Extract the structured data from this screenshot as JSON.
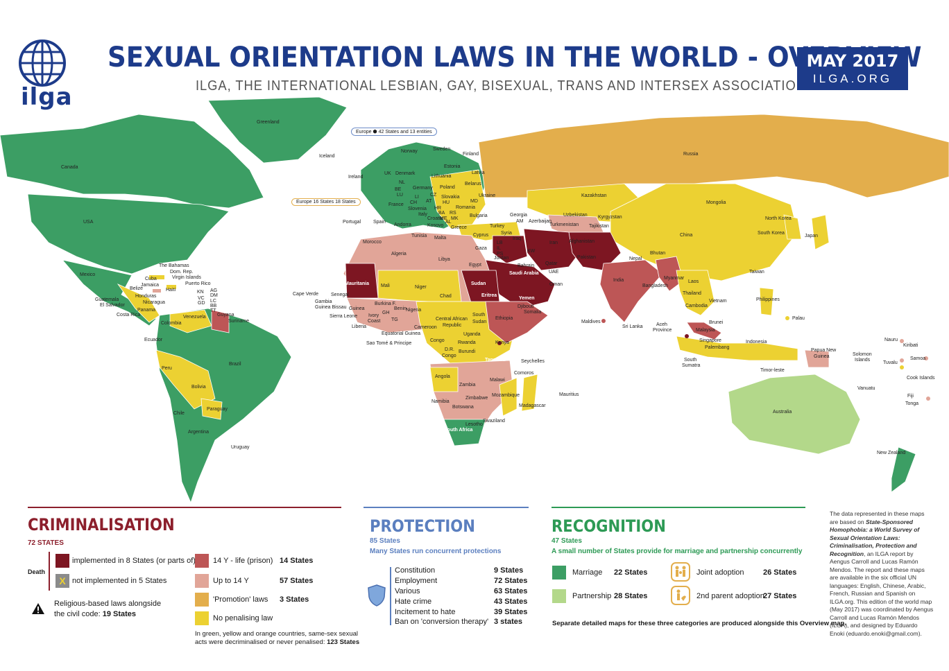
{
  "header": {
    "org_short": "ilga",
    "title": "SEXUAL ORIENTATION LAWS IN THE WORLD - OVERVIEW",
    "subtitle": "ILGA, THE INTERNATIONAL LESBIAN, GAY, BISEXUAL, TRANS AND INTERSEX ASSOCIATION",
    "date": "MAY 2017",
    "site": "ILGA.ORG"
  },
  "colors": {
    "marriage": "#3c9e64",
    "partnership": "#b3d88a",
    "death": "#7d1622",
    "death_not_implemented": "#8b8b8b",
    "prison_14y_life": "#bd5656",
    "up_to_14y": "#e1a598",
    "promotion": "#e3ae4c",
    "no_penalising": "#ecd132",
    "brand_blue": "#1d3b8a",
    "criminalisation_title": "#8c1f2c",
    "recognition_title": "#2d9a55"
  },
  "map_labels": {
    "europe_protection": "Europe",
    "europe_protection_count": "42 States and 13 entities",
    "europe_adoption": "Europe",
    "europe_adoption_joint": "16 States",
    "europe_adoption_second": "18 States",
    "greenland": "Greenland",
    "canada": "Canada",
    "usa": "USA",
    "mexico": "Mexico",
    "bahamas": "The Bahamas",
    "dom_rep": "Dom. Rep.",
    "virgin": "Virgin Islands",
    "cuba": "Cuba",
    "jamaica": "Jamaica",
    "haiti": "Haiti",
    "puerto_rico": "Puerto Rico",
    "belize": "Belize",
    "honduras": "Honduras",
    "guatemala": "Guatemala",
    "el_salvador": "El Salvador",
    "nicaragua": "Nicaragua",
    "panama": "Panama",
    "costa_rica": "Costa Rica",
    "kn": "KN",
    "ag": "AG",
    "lc": "LC",
    "vc": "VC",
    "bb": "BB",
    "gd": "GD",
    "tt": "TT",
    "dm": "DM",
    "venezuela": "Venezuela",
    "guyana": "Guyana",
    "suriname": "Suriname",
    "colombia": "Colombia",
    "ecuador": "Ecuador",
    "peru": "Peru",
    "brazil": "Brazil",
    "bolivia": "Bolivia",
    "chile": "Chile",
    "paraguay": "Paraguay",
    "argentina": "Argentina",
    "uruguay": "Uruguay",
    "iceland": "Iceland",
    "norway": "Norway",
    "sweden": "Sweden",
    "finland": "Finland",
    "estonia": "Estonia",
    "latvia": "Latvia",
    "lithuania": "Lithuania",
    "denmark": "Denmark",
    "uk": "UK",
    "ireland": "Ireland",
    "nl": "NL",
    "be": "BE",
    "lu": "LU",
    "germany": "Germany",
    "poland": "Poland",
    "belarus": "Belarus",
    "france": "France",
    "cz": "CZ",
    "slovakia": "Slovakia",
    "ukraine": "Ukraine",
    "li": "LI",
    "ch": "CH",
    "at": "AT",
    "hu": "HU",
    "md": "MD",
    "slovenia": "Slovenia",
    "hr": "HR",
    "romania": "Romania",
    "italy": "Italy",
    "ba": "BA",
    "rs": "RS",
    "me": "ME",
    "mk": "MK",
    "al": "AL",
    "bulgaria": "Bulgaria",
    "andorra": "Andorra",
    "kosovo": "Kosovo",
    "croatia": "Croatia",
    "greece": "Greece",
    "portugal": "Portugal",
    "spain": "Spain",
    "malta": "Malta",
    "cyprus": "Cyprus",
    "turkey": "Turkey",
    "georgia": "Georgia",
    "am": "AM",
    "azerbaijan": "Azerbaijan",
    "russia": "Russia",
    "kazakhstan": "Kazakhstan",
    "uzbekistan": "Uzbekistan",
    "turkmenistan": "Turkmenistan",
    "kyrgyzstan": "Kyrgyzstan",
    "tajikistan": "Tajikistan",
    "mongolia": "Mongolia",
    "china": "China",
    "north_korea": "North Korea",
    "south_korea": "South Korea",
    "japan": "Japan",
    "taiwan": "Taiwan",
    "philippines": "Philippines",
    "palau": "Palau",
    "afghanistan": "Afghanistan",
    "pakistan": "Pakistan",
    "iran": "Iran",
    "iraq": "Iraq",
    "syria": "Syria",
    "lebanon": "LB",
    "il": "IL",
    "ps": "PS",
    "jordan": "Jordan",
    "kw": "KW",
    "bahrain": "Bahrain",
    "qatar": "Qatar",
    "saudi": "Saudi Arabia",
    "uae": "UAE",
    "oman": "Oman",
    "yemen": "Yemen",
    "india": "India",
    "nepal": "Nepal",
    "bhutan": "Bhutan",
    "bangladesh": "Bangladesh",
    "myanmar": "Myanmar",
    "laos": "Laos",
    "thailand": "Thailand",
    "vietnam": "Vietnam",
    "cambodia": "Cambodia",
    "sri_lanka": "Sri Lanka",
    "maldives": "Maldives",
    "brunei": "Brunei",
    "malaysia": "Malaysia",
    "singapore": "Singapore",
    "palembang": "Palembang",
    "aceh": "Aceh",
    "aceh2": "Province",
    "indonesia": "Indonesia",
    "south_sumatra": "South",
    "south_sumatra2": "Sumatra",
    "timor": "Timor-leste",
    "png": "Papua New",
    "png2": "Guinea",
    "solomon": "Solomon",
    "solomon2": "Islands",
    "nauru": "Nauru",
    "kiribati": "Kiribati",
    "tuvalu": "Tuvalu",
    "samoa": "Samoa",
    "cook": "Cook Islands",
    "vanuatu": "Vanuatu",
    "fiji": "Fiji",
    "tonga": "Tonga",
    "australia": "Australia",
    "new_zealand": "New Zealand",
    "morocco": "Morocco",
    "tunisia": "Tunisia",
    "algeria": "Algeria",
    "libya": "Libya",
    "egypt": "Egypt",
    "gaza": "Gaza",
    "mauritania": "Mauritania",
    "mali": "Mali",
    "niger": "Niger",
    "chad": "Chad",
    "sudan": "Sudan",
    "eritrea": "Eritrea",
    "djibouti": "Djibouti",
    "somalia": "Somalia",
    "ethiopia": "Ethiopia",
    "cape_verde": "Cape Verde",
    "senegal": "Senegal",
    "gambia": "Gambia",
    "guinea_bissau": "Guinea Bissau",
    "guinea": "Guinea",
    "sierra_leone": "Sierra Leone",
    "liberia": "Liberia",
    "burkina": "Burkina F.",
    "gh": "GH",
    "tg": "TG",
    "benin": "Benin",
    "ivory": "Ivory",
    "ivory2": "Coast",
    "nigeria": "Nigeria",
    "cameroon": "Cameroon",
    "car": "Central African",
    "car2": "Republic",
    "south_sudan": "South",
    "south_sudan2": "Sudan",
    "eq_guinea": "Equatorial Guinea",
    "sao_tome": "Sao Tomé & Principe",
    "congo": "Congo",
    "drc": "D.R.",
    "drc2": "Congo",
    "uganda": "Uganda",
    "kenya": "Kenya",
    "rwanda": "Rwanda",
    "burundi": "Burundi",
    "tanzania": "Tanzania",
    "seychelles": "Seychelles",
    "comoros": "Comoros",
    "angola": "Angola",
    "zambia": "Zambia",
    "malawi": "Malawi",
    "mozambique": "Mozambique",
    "zimbabwe": "Zimbabwe",
    "namibia": "Namibia",
    "botswana": "Botswana",
    "madagascar": "Madagascar",
    "mauritius": "Mauritius",
    "south_africa": "South Africa",
    "lesotho": "Lesotho",
    "swaziland": "Swaziland"
  },
  "criminalisation": {
    "title": "CRIMINALISATION",
    "count": "72 STATES",
    "death_label": "Death",
    "death_implemented": "implemented in 8 States (or parts of)",
    "death_not_implemented": "not implemented in 5 States",
    "x_mark": "X",
    "religious_line1": "Religious-based laws alongside",
    "religious_line2": "the civil code: ",
    "religious_count": "19 States",
    "rows": [
      {
        "label": "14 Y - life (prison)",
        "count": "14 States"
      },
      {
        "label": "Up to 14 Y",
        "count": "57 States"
      },
      {
        "label": "'Promotion' laws",
        "count": "3 States"
      },
      {
        "label": "No penalising law",
        "count": ""
      }
    ],
    "footnote_line1": "In green, yellow and orange countries, same-sex sexual",
    "footnote_line2": "acts were decriminalised or never penalised: ",
    "footnote_count": "123 States"
  },
  "protection": {
    "title": "PROTECTION",
    "count": "85 States",
    "note": "Many States run concurrent protections",
    "items": [
      {
        "label": "Constitution",
        "count": "9 States"
      },
      {
        "label": "Employment",
        "count": "72 States"
      },
      {
        "label": "Various",
        "count": "63 States"
      },
      {
        "label": "Hate crime",
        "count": "43 States"
      },
      {
        "label": "Incitement to hate",
        "count": "39 States"
      },
      {
        "label": "Ban on 'conversion therapy'",
        "count": "3 states"
      }
    ]
  },
  "recognition": {
    "title": "RECOGNITION",
    "count": "47 States",
    "note": "A small number of States provide for marriage and partnership concurrently",
    "marriage": "Marriage",
    "marriage_count": "22 States",
    "partnership": "Partnership",
    "partnership_count": "28 States",
    "joint": "Joint adoption",
    "joint_count": "26 States",
    "second": "2nd parent adoption",
    "second_count": "27 States",
    "footnote": "Separate detailed maps for these three categories are produced alongside this Overview map."
  },
  "credits": {
    "p1": "The data represented in these maps are based on ",
    "p2": "State-Sponsored Homophobia: a World Survey of Sexual Orientation Laws: Criminalisation, Protection and Recognition",
    "p3": ", an ILGA report by Aengus Carroll and Lucas Ramón Mendos. The report and these maps are available in the six official UN languages: English, Chinese, Arabic, French, Russian and Spanish on ILGA.org. This edition of the world map (May 2017) was coordinated by Aengus Carroll and Lucas Ramón Mendos (ILGA), and designed by Eduardo Enoki (eduardo.enoki@gmail.com)."
  }
}
